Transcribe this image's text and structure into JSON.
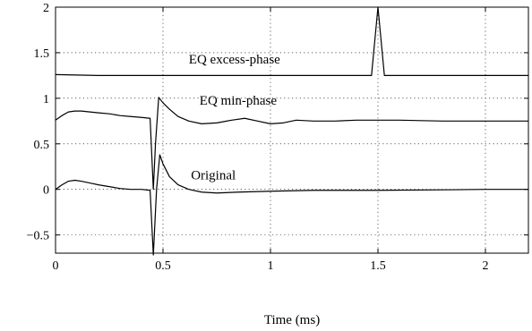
{
  "chart_data": {
    "type": "line",
    "xlabel": "Time (ms)",
    "ylabel": "",
    "xlim": [
      0,
      2.2
    ],
    "ylim": [
      -0.7,
      2
    ],
    "xticks": [
      0,
      0.5,
      1,
      1.5,
      2
    ],
    "xtick_labels": [
      "0",
      "0.5",
      "1",
      "1.5",
      "2"
    ],
    "yticks": [
      -0.5,
      0,
      0.5,
      1,
      1.5,
      2
    ],
    "ytick_labels": [
      "−0.5",
      "0",
      "0.5",
      "1",
      "1.5",
      "2"
    ],
    "grid": true,
    "series": [
      {
        "name": "Original",
        "x": [
          0,
          0.03,
          0.06,
          0.09,
          0.12,
          0.16,
          0.2,
          0.25,
          0.3,
          0.35,
          0.4,
          0.44,
          0.455,
          0.47,
          0.485,
          0.5,
          0.53,
          0.57,
          0.62,
          0.68,
          0.75,
          0.85,
          1.0,
          1.2,
          1.5,
          1.8,
          2.0,
          2.2
        ],
        "y": [
          0,
          0.05,
          0.09,
          0.1,
          0.09,
          0.07,
          0.05,
          0.03,
          0.01,
          0.0,
          0.0,
          -0.01,
          -0.72,
          0.0,
          0.38,
          0.28,
          0.14,
          0.05,
          0.0,
          -0.03,
          -0.04,
          -0.03,
          -0.02,
          -0.01,
          -0.01,
          -0.005,
          0.0,
          0.0
        ]
      },
      {
        "name": "EQ min-phase",
        "x": [
          0,
          0.03,
          0.06,
          0.09,
          0.12,
          0.16,
          0.2,
          0.25,
          0.3,
          0.35,
          0.4,
          0.44,
          0.455,
          0.465,
          0.48,
          0.5,
          0.53,
          0.57,
          0.62,
          0.68,
          0.75,
          0.82,
          0.88,
          0.94,
          1.0,
          1.06,
          1.12,
          1.2,
          1.3,
          1.4,
          1.6,
          1.8,
          2.0,
          2.2
        ],
        "y": [
          0.76,
          0.81,
          0.85,
          0.86,
          0.86,
          0.85,
          0.84,
          0.83,
          0.81,
          0.8,
          0.79,
          0.78,
          0.0,
          0.5,
          1.01,
          0.95,
          0.88,
          0.8,
          0.75,
          0.72,
          0.73,
          0.76,
          0.78,
          0.75,
          0.72,
          0.73,
          0.76,
          0.75,
          0.75,
          0.76,
          0.76,
          0.75,
          0.75,
          0.75
        ]
      },
      {
        "name": "EQ excess-phase",
        "x": [
          0,
          0.2,
          0.5,
          1.0,
          1.3,
          1.47,
          1.5,
          1.53,
          1.7,
          2.0,
          2.2
        ],
        "y": [
          1.26,
          1.25,
          1.25,
          1.25,
          1.25,
          1.25,
          2.0,
          1.25,
          1.25,
          1.25,
          1.25
        ]
      }
    ],
    "annotations": [
      {
        "text": "EQ excess-phase",
        "x": 0.62,
        "y": 1.38
      },
      {
        "text": "EQ min-phase",
        "x": 0.67,
        "y": 0.93
      },
      {
        "text": "Original",
        "x": 0.63,
        "y": 0.11
      }
    ]
  }
}
